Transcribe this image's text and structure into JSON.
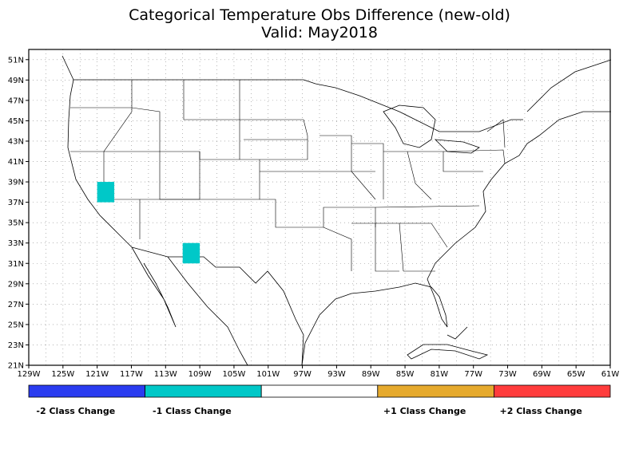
{
  "title": "Categorical Temperature Obs Difference (new-old)",
  "subtitle": "Valid: May2018",
  "map": {
    "lon_range": [
      -129,
      -61
    ],
    "lat_range": [
      21,
      52
    ],
    "lat_ticks": [
      "51N",
      "49N",
      "47N",
      "45N",
      "43N",
      "41N",
      "39N",
      "37N",
      "35N",
      "33N",
      "31N",
      "29N",
      "27N",
      "25N",
      "23N",
      "21N"
    ],
    "lon_ticks": [
      "129W",
      "125W",
      "121W",
      "117W",
      "113W",
      "109W",
      "105W",
      "101W",
      "97W",
      "93W",
      "89W",
      "85W",
      "81W",
      "77W",
      "73W",
      "69W",
      "65W",
      "61W"
    ],
    "grid": "dotted",
    "cells": [
      {
        "lon": [
          -121,
          -119
        ],
        "lat": [
          37,
          39
        ],
        "class": -1,
        "color": "#00c8c8"
      },
      {
        "lon": [
          -111,
          -109
        ],
        "lat": [
          31,
          33
        ],
        "class": -1,
        "color": "#00c8c8"
      }
    ]
  },
  "legend": {
    "swatches": [
      {
        "color": "#2a3cf0",
        "label": "-2 Class Change"
      },
      {
        "color": "#00c8c8",
        "label": "-1 Class Change"
      },
      {
        "color": "#ffffff",
        "label": ""
      },
      {
        "color": "#e6aa2d",
        "label": "+1 Class Change"
      },
      {
        "color": "#ff3c3c",
        "label": "+2 Class Change"
      }
    ]
  }
}
